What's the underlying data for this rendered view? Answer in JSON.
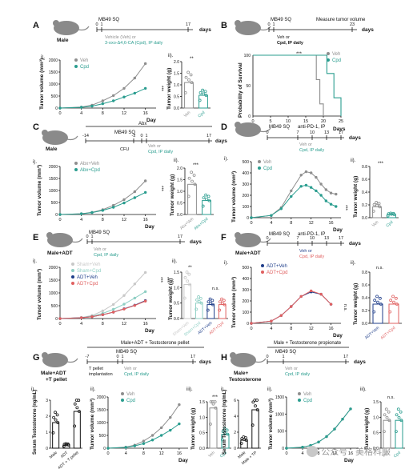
{
  "colors": {
    "veh": "#8e8e8e",
    "cpd": "#2a9d8f",
    "sham_veh": "#c8c8c8",
    "sham_cpd": "#8fcfc4",
    "adt_veh": "#1f3e8a",
    "adt_cpd": "#e06060",
    "mouse": "#8a8a8a"
  },
  "panels": {
    "A": {
      "letter": "A",
      "mouse": "Male",
      "tumor": "MB49 SQ",
      "days": "days",
      "t0": "0",
      "t1": "1",
      "tend": "17",
      "lines": [
        "Vehicle (Veh) or",
        "3-oxo-Δ4,6-CA (Cpd), IP daily"
      ],
      "legend": [
        "Veh",
        "Cpd"
      ],
      "sub_i": "i).",
      "sub_ii": "ii).",
      "stars_curve": "***",
      "stars_bar": "**",
      "ylabel": "Tumor volume (mm³)",
      "xlabel": "Day",
      "bar_ylabel": "Tumor weight (g)",
      "xticks": [
        "0",
        "4",
        "8",
        "12",
        "16"
      ],
      "yticks": [
        "0",
        "500",
        "1000",
        "1500",
        "2000"
      ],
      "bar_ticks": [
        "0.0",
        "0.5",
        "1.0",
        "1.5",
        "2.0"
      ],
      "bar_labels": [
        "Veh",
        "Cpd"
      ]
    },
    "B": {
      "letter": "B",
      "tumor": "MB49 SQ",
      "measure": "Measure tumor volume",
      "days": "days",
      "t0": "0",
      "t1": "1",
      "tend": "23",
      "line": "Veh or",
      "line2": "Cpd, IP daily",
      "legend": [
        "Veh",
        "Cpd"
      ],
      "stars": "***",
      "ylabel": "Probability of Survival",
      "xlabel": "Days",
      "xticks": [
        "0",
        "5",
        "10",
        "15",
        "20",
        "25"
      ],
      "yticks": [
        "0",
        "50",
        "100"
      ]
    },
    "C": {
      "letter": "C",
      "mouse": "Male",
      "abx": "Abx",
      "tumor": "MB49 SQ",
      "cfu": "CFU",
      "days": "days",
      "t0": "-14",
      "t1": "-2",
      "t2": "0",
      "t3": "1",
      "tend": "17",
      "line": "Veh or",
      "line2": "Cpd, IP daily",
      "legend": [
        "Abx+Veh",
        "Abx+Cpd"
      ],
      "sub_i": "i).",
      "sub_ii": "ii).",
      "stars_curve": "***",
      "stars_bar": "***",
      "ylabel": "Tumor volume (mm³)",
      "xlabel": "Day",
      "bar_ylabel": "Tumor weight (g)",
      "xticks": [
        "0",
        "4",
        "8",
        "12",
        "16"
      ],
      "yticks": [
        "0",
        "500",
        "1000",
        "1500",
        "2000"
      ],
      "bar_ticks": [
        "0.0",
        "0.5",
        "1.0",
        "1.5",
        "2.0"
      ],
      "bar_labels": [
        "Abx+Veh",
        "Abx+Cpd"
      ]
    },
    "D": {
      "letter": "D",
      "tumor": "MB49 SQ",
      "treat": "anti-PD-1, IP",
      "days": "days",
      "t0": "0",
      "t1": "7",
      "t2": "10",
      "t3": "13",
      "tend": "17",
      "line": "Veh or",
      "line2": "Cpd, IP daily",
      "legend": [
        "Veh",
        "Cpd"
      ],
      "sub_i": "i).",
      "sub_ii": "ii).",
      "stars_curve": "***",
      "stars_bar": "***",
      "ylabel": "Tumor volume (mm³)",
      "xlabel": "Day",
      "bar_ylabel": "Tumor weight (g)",
      "xticks": [
        "0",
        "4",
        "8",
        "12",
        "16"
      ],
      "yticks": [
        "0",
        "100",
        "200",
        "300",
        "400",
        "500"
      ],
      "bar_ticks": [
        "0.0",
        "0.2",
        "0.4",
        "0.6",
        "0.8"
      ],
      "bar_labels": [
        "Veh",
        "Cpd"
      ]
    },
    "E": {
      "letter": "E",
      "mouse": "Male+ADT",
      "tumor": "MB49 SQ",
      "days": "days",
      "t0": "0",
      "t1": "1",
      "tend": "17",
      "line": "Veh or",
      "line2": "Cpd, IP daily",
      "legend": [
        "Sham+Veh",
        "Sham+Cpd",
        "ADT+Veh",
        "ADT+Cpd"
      ],
      "sub_i": "i).",
      "sub_ii": "ii).",
      "stars": [
        "***",
        "***"
      ],
      "stars_bar": "**",
      "ns": "n.s.",
      "ylabel": "Tumor volume (mm³)",
      "xlabel": "Day",
      "bar_ylabel": "Tumor weight (g)",
      "xticks": [
        "0",
        "4",
        "8",
        "12",
        "16"
      ],
      "yticks": [
        "0",
        "500",
        "1000",
        "1500",
        "2000"
      ],
      "bar_ticks": [
        "0.0",
        "0.5",
        "1.0",
        "1.5"
      ],
      "bar_labels": [
        "Sham+Veh",
        "Sham+Cpd",
        "ADT+Veh",
        "ADT+Cpd"
      ]
    },
    "F": {
      "letter": "F",
      "mouse": "Male+ADT",
      "tumor": "MB49 SQ",
      "treat": "anti-PD-1, IP",
      "days": "days",
      "t0": "0",
      "t1": "7",
      "t2": "10",
      "t3": "13",
      "tend": "17",
      "line": "Veh or",
      "line2": "Cpd, IP daily",
      "legend": [
        "ADT+Veh",
        "ADT+Cpd"
      ],
      "sub_i": "i).",
      "sub_ii": "ii).",
      "stars": "n.s.",
      "ns": "n.s.",
      "ylabel": "Tumor volume (mm³)",
      "xlabel": "Day",
      "bar_ylabel": "Tumor weight (g)",
      "xticks": [
        "0",
        "4",
        "8",
        "12",
        "16"
      ],
      "yticks": [
        "0",
        "100",
        "200",
        "300",
        "400",
        "500"
      ],
      "bar_ticks": [
        "0.0",
        "0.2",
        "0.4",
        "0.6",
        "0.8"
      ],
      "bar_labels": [
        "ADT+Veh",
        "ADT+Cpd"
      ]
    },
    "G": {
      "letter": "G",
      "mouse": "Male+ADT",
      "mouse2": "+T pellet",
      "header": "Male+ADT + Testosterone pellet",
      "tumor": "MB49 SQ",
      "pellet": "T pellet",
      "pellet2": "implantation",
      "days": "days",
      "t0": "-7",
      "t1": "0",
      "t2": "1",
      "tend": "17",
      "line": "Veh or",
      "line2": "Cpd, IP daily",
      "legend": [
        "Veh",
        "Cpd"
      ],
      "sub_i": "i).",
      "sub_ii": "ii).",
      "sub_iii": "iii).",
      "stars_bar": "***",
      "serum_ylabel": "Serum Testosterone (ng/mL)",
      "serum_ticks": [
        "0",
        "1",
        "2",
        "3"
      ],
      "serum_labels": [
        "Male",
        "ADT",
        "ADT + T pellet"
      ],
      "ylabel": "Tumor volume (mm³)",
      "xlabel": "Day",
      "bar_ylabel": "Tumor weight (g)",
      "xticks": [
        "0",
        "4",
        "8",
        "12",
        "16"
      ],
      "yticks": [
        "0",
        "500",
        "1000",
        "1500",
        "2000"
      ],
      "bar_ticks": [
        "0.0",
        "0.5",
        "1.0",
        "1.5"
      ],
      "bar_labels": [
        "Veh",
        "Cpd"
      ]
    },
    "H": {
      "letter": "H",
      "mouse": "Male+",
      "mouse2": "Testosterone",
      "header": "Male + Testosterone propionate",
      "tumor": "MB49 SQ",
      "days": "days",
      "t0": "0",
      "t1": "1",
      "tend": "17",
      "line": "Veh or",
      "line2": "Cpd, IP daily",
      "legend": [
        "Veh",
        "Cpd"
      ],
      "sub_i": "i).",
      "sub_ii": "ii).",
      "sub_iii": "iii).",
      "ns": "n.s.",
      "serum_ylabel": "Serum Testosterone (ng/mL)",
      "serum_ticks": [
        "0",
        "2",
        "4",
        "6"
      ],
      "serum_labels": [
        "Male",
        "Male + TP"
      ],
      "ylabel": "Tumor volume (mm³)",
      "xlabel": "Day",
      "bar_ylabel": "Tumor weight (g)",
      "xticks": [
        "0",
        "4",
        "8",
        "12",
        "16"
      ],
      "yticks": [
        "0",
        "500",
        "1000",
        "1500"
      ],
      "bar_ticks": [
        "0.0",
        "0.5",
        "1.0",
        "1.5"
      ],
      "bar_labels": [
        "Veh",
        "Cpd"
      ]
    }
  },
  "watermark": "公众号 · 美格科服",
  "chart_data": [
    {
      "panel": "A-i",
      "type": "line",
      "x": [
        0,
        4,
        6,
        8,
        10,
        12,
        14,
        16
      ],
      "series": [
        {
          "name": "Veh",
          "values": [
            0,
            40,
            120,
            300,
            520,
            820,
            1250,
            1850
          ]
        },
        {
          "name": "Cpd",
          "values": [
            0,
            30,
            80,
            180,
            300,
            460,
            620,
            820
          ]
        }
      ],
      "xlabel": "Day",
      "ylabel": "Tumor volume (mm³)",
      "ylim": [
        0,
        2000
      ]
    },
    {
      "panel": "A-ii",
      "type": "bar",
      "categories": [
        "Veh",
        "Cpd"
      ],
      "values": [
        1.1,
        0.55
      ],
      "ylabel": "Tumor weight (g)",
      "ylim": [
        0,
        2.0
      ]
    },
    {
      "panel": "B",
      "type": "line",
      "series": [
        {
          "name": "Veh",
          "x": [
            0,
            17,
            18,
            19,
            20
          ],
          "values": [
            100,
            100,
            60,
            20,
            0
          ]
        },
        {
          "name": "Cpd",
          "x": [
            0,
            20,
            21,
            23,
            25
          ],
          "values": [
            100,
            100,
            70,
            30,
            0
          ]
        }
      ],
      "xlabel": "Days",
      "ylabel": "Probability of Survival",
      "ylim": [
        0,
        100
      ]
    },
    {
      "panel": "C-i",
      "type": "line",
      "x": [
        0,
        4,
        6,
        8,
        10,
        12,
        14,
        16
      ],
      "series": [
        {
          "name": "Abx+Veh",
          "values": [
            0,
            30,
            90,
            200,
            380,
            620,
            950,
            1400
          ]
        },
        {
          "name": "Abx+Cpd",
          "values": [
            0,
            30,
            80,
            170,
            300,
            480,
            700,
            920
          ]
        }
      ],
      "xlabel": "Day",
      "ylabel": "Tumor volume (mm³)",
      "ylim": [
        0,
        2000
      ]
    },
    {
      "panel": "C-ii",
      "type": "bar",
      "categories": [
        "Abx+Veh",
        "Abx+Cpd"
      ],
      "values": [
        1.3,
        0.6
      ],
      "ylabel": "Tumor weight (g)",
      "ylim": [
        0,
        2.0
      ]
    },
    {
      "panel": "D-i",
      "type": "line",
      "x": [
        0,
        4,
        6,
        8,
        10,
        11,
        12,
        13,
        14,
        15,
        16,
        17
      ],
      "series": [
        {
          "name": "Veh",
          "values": [
            0,
            20,
            90,
            240,
            380,
            410,
            400,
            360,
            300,
            250,
            220,
            210
          ]
        },
        {
          "name": "Cpd",
          "values": [
            0,
            20,
            80,
            190,
            280,
            290,
            270,
            240,
            200,
            150,
            120,
            100
          ]
        }
      ],
      "xlabel": "Day",
      "ylabel": "Tumor volume (mm³)",
      "ylim": [
        0,
        500
      ]
    },
    {
      "panel": "D-ii",
      "type": "bar",
      "categories": [
        "Veh",
        "Cpd"
      ],
      "values": [
        0.17,
        0.05
      ],
      "ylabel": "Tumor weight (g)",
      "ylim": [
        0,
        0.8
      ]
    },
    {
      "panel": "E-i",
      "type": "line",
      "x": [
        0,
        4,
        6,
        8,
        10,
        12,
        14,
        16
      ],
      "series": [
        {
          "name": "Sham+Veh",
          "values": [
            0,
            40,
            120,
            300,
            550,
            900,
            1350,
            1800
          ]
        },
        {
          "name": "Sham+Cpd",
          "values": [
            0,
            30,
            90,
            200,
            360,
            560,
            800,
            1050
          ]
        },
        {
          "name": "ADT+Veh",
          "values": [
            0,
            30,
            70,
            150,
            250,
            380,
            520,
            700
          ]
        },
        {
          "name": "ADT+Cpd",
          "values": [
            0,
            30,
            70,
            150,
            250,
            370,
            510,
            680
          ]
        }
      ],
      "xlabel": "Day",
      "ylabel": "Tumor volume (mm³)",
      "ylim": [
        0,
        2000
      ]
    },
    {
      "panel": "E-ii",
      "type": "bar",
      "categories": [
        "Sham+Veh",
        "Sham+Cpd",
        "ADT+Veh",
        "ADT+Cpd"
      ],
      "values": [
        1.1,
        0.5,
        0.45,
        0.45
      ],
      "ylabel": "Tumor weight (g)",
      "ylim": [
        0,
        1.5
      ]
    },
    {
      "panel": "F-i",
      "type": "line",
      "x": [
        0,
        4,
        6,
        8,
        10,
        12,
        14,
        16
      ],
      "series": [
        {
          "name": "ADT+Veh",
          "values": [
            0,
            20,
            70,
            150,
            240,
            280,
            260,
            170
          ]
        },
        {
          "name": "ADT+Cpd",
          "values": [
            0,
            20,
            70,
            150,
            240,
            290,
            260,
            170
          ]
        }
      ],
      "xlabel": "Day",
      "ylabel": "Tumor volume (mm³)",
      "ylim": [
        0,
        500
      ]
    },
    {
      "panel": "F-ii",
      "type": "bar",
      "categories": [
        "ADT+Veh",
        "ADT+Cpd"
      ],
      "values": [
        0.3,
        0.3
      ],
      "ylabel": "Tumor weight (g)",
      "ylim": [
        0,
        0.8
      ]
    },
    {
      "panel": "G-i",
      "type": "bar",
      "categories": [
        "Male",
        "ADT",
        "ADT + T pellet"
      ],
      "values": [
        1.6,
        0.2,
        2.3
      ],
      "ylabel": "Serum Testosterone (ng/mL)",
      "ylim": [
        0,
        3
      ]
    },
    {
      "panel": "G-ii",
      "type": "line",
      "x": [
        0,
        4,
        6,
        8,
        10,
        12,
        14,
        16
      ],
      "series": [
        {
          "name": "Veh",
          "values": [
            0,
            40,
            120,
            280,
            500,
            800,
            1200,
            1700
          ]
        },
        {
          "name": "Cpd",
          "values": [
            0,
            30,
            90,
            180,
            320,
            500,
            700,
            950
          ]
        }
      ],
      "xlabel": "Day",
      "ylabel": "Tumor volume (mm³)",
      "ylim": [
        0,
        2000
      ]
    },
    {
      "panel": "G-iii",
      "type": "bar",
      "categories": [
        "Veh",
        "Cpd"
      ],
      "values": [
        1.3,
        0.45
      ],
      "ylabel": "Tumor weight (g)",
      "ylim": [
        0,
        1.5
      ]
    },
    {
      "panel": "H-i",
      "type": "bar",
      "categories": [
        "Male",
        "Male + TP"
      ],
      "values": [
        1.0,
        4.8
      ],
      "ylabel": "Serum Testosterone (ng/mL)",
      "ylim": [
        0,
        6
      ]
    },
    {
      "panel": "H-ii",
      "type": "line",
      "x": [
        0,
        4,
        6,
        8,
        10,
        12,
        14,
        16
      ],
      "series": [
        {
          "name": "Veh",
          "values": [
            0,
            30,
            80,
            180,
            340,
            560,
            850,
            1150
          ]
        },
        {
          "name": "Cpd",
          "values": [
            0,
            30,
            80,
            180,
            340,
            560,
            850,
            1150
          ]
        }
      ],
      "xlabel": "Day",
      "ylabel": "Tumor volume (mm³)",
      "ylim": [
        0,
        1500
      ]
    },
    {
      "panel": "H-iii",
      "type": "bar",
      "categories": [
        "Veh",
        "Cpd"
      ],
      "values": [
        0.9,
        0.9
      ],
      "ylabel": "Tumor weight (g)",
      "ylim": [
        0,
        1.5
      ]
    }
  ]
}
